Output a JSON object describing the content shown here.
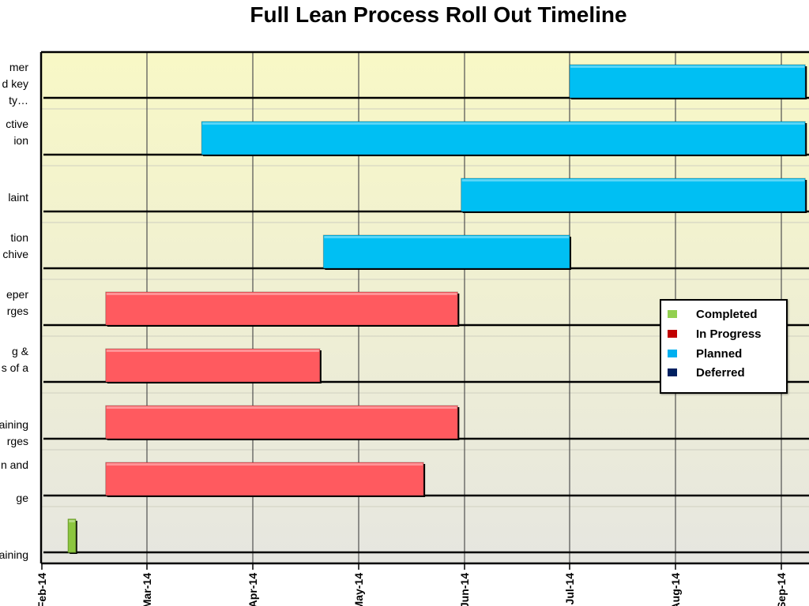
{
  "chart_data": {
    "type": "bar",
    "orientation": "horizontal-gantt",
    "title": "Full Lean Process Roll Out Timeline",
    "x_tick_labels": [
      "Feb-14",
      "Mar-14",
      "Apr-14",
      "May-14",
      "Jun-14",
      "Jul-14",
      "Aug-14",
      "Sep-14"
    ],
    "x_ticks_iso": [
      "2014-02-01",
      "2014-03-01",
      "2014-04-01",
      "2014-05-01",
      "2014-06-01",
      "2014-07-01",
      "2014-08-01",
      "2014-09-01"
    ],
    "xlim": [
      "2014-02-01",
      "2014-09-08"
    ],
    "grid": true,
    "categories": [
      "mer\nd key\nty…",
      "ctive\nion",
      "laint",
      "tion\nchive",
      "eper\nrges",
      "g &\ns of a",
      "aining\nrges",
      "n and\n\nge",
      "aining"
    ],
    "tasks": [
      {
        "start": "2014-07-01",
        "end": "2014-09-08",
        "status": "Planned"
      },
      {
        "start": "2014-03-17",
        "end": "2014-09-08",
        "status": "Planned"
      },
      {
        "start": "2014-05-31",
        "end": "2014-09-08",
        "status": "Planned"
      },
      {
        "start": "2014-04-21",
        "end": "2014-07-01",
        "status": "Planned"
      },
      {
        "start": "2014-02-18",
        "end": "2014-05-30",
        "status": "In Progress"
      },
      {
        "start": "2014-02-18",
        "end": "2014-04-20",
        "status": "In Progress"
      },
      {
        "start": "2014-02-18",
        "end": "2014-05-30",
        "status": "In Progress"
      },
      {
        "start": "2014-02-18",
        "end": "2014-05-20",
        "status": "In Progress"
      },
      {
        "start": "2014-02-08",
        "end": "2014-02-10",
        "status": "Completed"
      }
    ],
    "legend": {
      "position": "right",
      "items": [
        {
          "label": "Completed",
          "color": "#92d050"
        },
        {
          "label": "In Progress",
          "color": "#c00000"
        },
        {
          "label": "Planned",
          "color": "#00b0f0"
        },
        {
          "label": "Deferred",
          "color": "#002060"
        }
      ]
    },
    "bar_colors": {
      "Completed": "#8cc63f",
      "In Progress": "#ff5a5f",
      "Planned": "#00bff3",
      "Deferred": "#002060"
    }
  }
}
